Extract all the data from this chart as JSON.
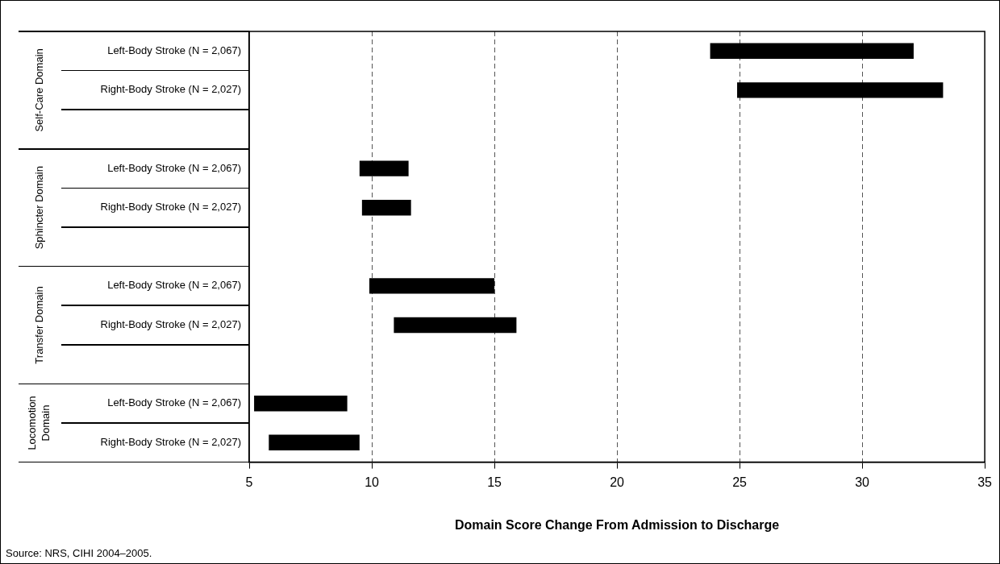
{
  "chart_data": {
    "type": "bar",
    "orientation": "horizontal",
    "categories": [
      "Left-Body Stroke (N = 2,067)",
      "Right-Body Stroke (N = 2,027)",
      null,
      "Left-Body Stroke (N = 2,067)",
      "Right-Body Stroke (N = 2,027)",
      null,
      "Left-Body Stroke (N = 2,067)",
      "Right-Body Stroke (N = 2,027)",
      null,
      "Left-Body Stroke (N = 2,067)",
      "Right-Body Stroke (N = 2,027)"
    ],
    "base": [
      23.8,
      24.9,
      null,
      9.5,
      9.6,
      null,
      9.9,
      10.9,
      null,
      5.2,
      5.8
    ],
    "values": [
      8.3,
      8.4,
      null,
      2.0,
      2.0,
      null,
      5.1,
      5.0,
      null,
      3.8,
      3.7
    ],
    "color": "#000000",
    "xlim": [
      5,
      35
    ],
    "xticks": [
      5,
      10,
      15,
      20,
      25,
      30,
      35
    ],
    "xlabel": "Domain Score Change From Admission to Discharge",
    "grid": "x",
    "legend": false,
    "annotations": [
      "Self-Care Domain",
      "Sphincter Domain",
      "Transfer Domain",
      "Locomotion Domain",
      "Source: NRS, CIHI 2004–2005."
    ]
  }
}
